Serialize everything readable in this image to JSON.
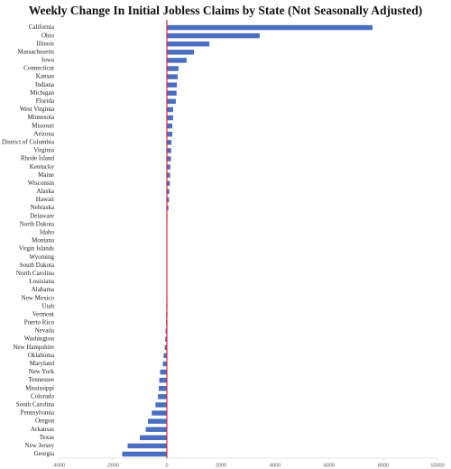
{
  "chart_data": {
    "type": "hbar",
    "title": "Weekly Change In Initial Jobless Claims by State (Not Seasonally Adjusted)",
    "categories": [
      "California",
      "Ohio",
      "Illinois",
      "Massachusetts",
      "Iowa",
      "Connecticut",
      "Kansas",
      "Indiana",
      "Michigan",
      "Florida",
      "West Virginia",
      "Minnesota",
      "Missouri",
      "Arizona",
      "District of Columbia",
      "Virginia",
      "Rhode Island",
      "Kentucky",
      "Maine",
      "Wisconsin",
      "Alaska",
      "Hawaii",
      "Nebraska",
      "Delaware",
      "North Dakota",
      "Idaho",
      "Montana",
      "Virgin Islands",
      "Wyoming",
      "South Dakota",
      "North Carolina",
      "Louisiana",
      "Alabama",
      "New Mexico",
      "Utah",
      "Vermont",
      "Puerto Rico",
      "Nevada",
      "Washington",
      "New Hampshire",
      "Oklahoma",
      "Maryland",
      "New York",
      "Tennessee",
      "Mississippi",
      "Colorado",
      "South Carolina",
      "Pennsylvania",
      "Oregon",
      "Arkansas",
      "Texas",
      "New Jersey",
      "Georgia"
    ],
    "values": [
      7600,
      3430,
      1570,
      1000,
      730,
      430,
      400,
      370,
      360,
      330,
      230,
      230,
      200,
      200,
      170,
      160,
      150,
      130,
      120,
      110,
      90,
      80,
      60,
      20,
      10,
      8,
      6,
      4,
      2,
      0,
      -2,
      -10,
      -15,
      -20,
      -25,
      -30,
      -35,
      -50,
      -60,
      -80,
      -120,
      -150,
      -250,
      -280,
      -300,
      -330,
      -420,
      -560,
      -700,
      -780,
      -1000,
      -1450,
      -1650
    ],
    "color": "#4a6fc0",
    "zero_line_color": "#e8262b",
    "xlim": [
      -4000,
      10000
    ],
    "xticks": [
      -4000,
      -2000,
      0,
      2000,
      4000,
      6000,
      8000,
      10000
    ],
    "grid": false
  }
}
